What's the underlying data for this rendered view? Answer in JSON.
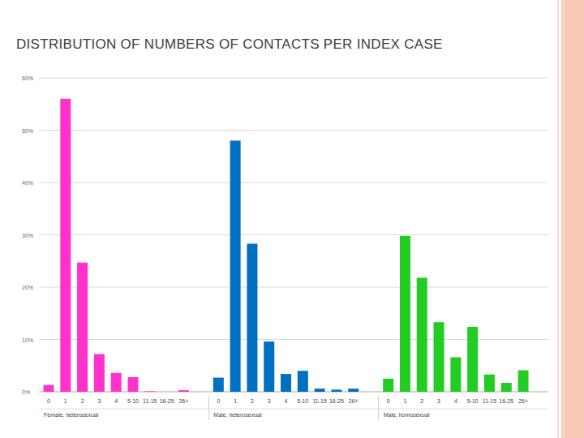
{
  "chart_data": {
    "type": "bar",
    "title": "DISTRIBUTION OF NUMBERS OF CONTACTS PER INDEX CASE",
    "categories": [
      "0",
      "1",
      "2",
      "3",
      "4",
      "5-10",
      "11-15",
      "16-25",
      "26+"
    ],
    "series": [
      {
        "name": "Female, heterosexual",
        "color": "#ff33cc",
        "values": [
          1.3,
          56,
          24.7,
          7.2,
          3.6,
          2.8,
          0.1,
          0,
          0.3
        ]
      },
      {
        "name": "Male, heterosexual",
        "color": "#0070c0",
        "values": [
          2.7,
          48,
          28.3,
          9.6,
          3.4,
          4,
          0.6,
          0.4,
          0.6
        ]
      },
      {
        "name": "Male, homosexual",
        "color": "#22cc22",
        "values": [
          2.5,
          29.8,
          21.8,
          13.3,
          6.6,
          12.4,
          3.3,
          1.7,
          4.1
        ]
      }
    ],
    "ylim": [
      0,
      60
    ],
    "yticks": [
      {
        "value": 0,
        "label": "0%"
      },
      {
        "value": 10,
        "label": "10%"
      },
      {
        "value": 20,
        "label": "20%"
      },
      {
        "value": 30,
        "label": "30%"
      },
      {
        "value": 40,
        "label": "40%"
      },
      {
        "value": 50,
        "label": "50%"
      },
      {
        "value": 60,
        "label": "60%"
      }
    ],
    "grid": true
  }
}
